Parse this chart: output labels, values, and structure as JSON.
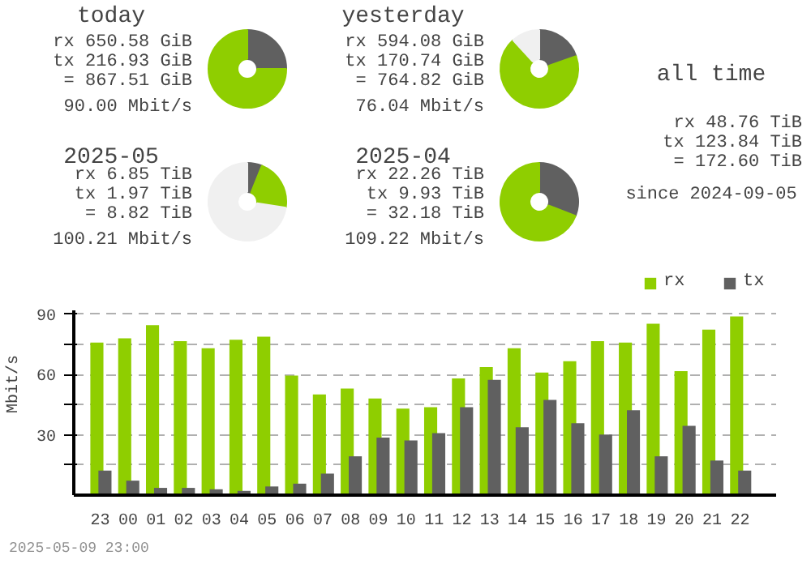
{
  "chart_data": [
    {
      "type": "donut",
      "title": "today",
      "categories": [
        null,
        null
      ],
      "values": [
        25.0,
        75.0
      ],
      "colors": [
        "#606060",
        "#8fce00"
      ],
      "annotations": [
        "rx 650.58 GiB",
        "tx 216.93 GiB",
        "= 867.51 GiB",
        "90.00 Mbit/s"
      ]
    },
    {
      "type": "donut",
      "title": "yesterday",
      "categories": [
        null,
        null,
        null
      ],
      "values": [
        19.7,
        68.5,
        11.8
      ],
      "colors": [
        "#606060",
        "#8fce00",
        "#f0f0f0"
      ],
      "annotations": [
        "rx 594.08 GiB",
        "tx 170.74 GiB",
        "= 764.82 GiB",
        "76.04 Mbit/s"
      ]
    },
    {
      "type": "other",
      "title": "all time",
      "annotations": [
        "rx 48.76 TiB",
        "tx 123.84 TiB",
        "= 172.60 TiB",
        "since 2024-09-05"
      ]
    },
    {
      "type": "donut",
      "title": "2025-05",
      "categories": [
        null,
        null,
        null
      ],
      "values": [
        6.1,
        21.3,
        72.6
      ],
      "colors": [
        "#606060",
        "#8fce00",
        "#f0f0f0"
      ],
      "annotations": [
        "rx 6.85 TiB",
        "tx 1.97 TiB",
        "= 8.82 TiB",
        "100.21 Mbit/s"
      ]
    },
    {
      "type": "donut",
      "title": "2025-04",
      "categories": [
        null,
        null
      ],
      "values": [
        30.9,
        69.1
      ],
      "colors": [
        "#606060",
        "#8fce00"
      ],
      "annotations": [
        "rx 22.26 TiB",
        "tx 9.93 TiB",
        "= 32.18 TiB",
        "109.22 Mbit/s"
      ]
    },
    {
      "type": "bar",
      "ylabel": "Mbit/s",
      "categories": [
        "23",
        "00",
        "01",
        "02",
        "03",
        "04",
        "05",
        "06",
        "07",
        "08",
        "09",
        "10",
        "11",
        "12",
        "13",
        "14",
        "15",
        "16",
        "17",
        "18",
        "19",
        "20",
        "21",
        "22"
      ],
      "series": [
        {
          "name": "rx",
          "color": "#8fce00",
          "values": [
            75.9,
            78.0,
            84.5,
            76.6,
            73.0,
            77.3,
            78.8,
            59.4,
            50.1,
            53.0,
            48.0,
            43.0,
            43.7,
            58.0,
            63.7,
            73.0,
            60.9,
            66.6,
            76.6,
            75.9,
            85.2,
            61.6,
            82.3,
            88.8
          ]
        },
        {
          "name": "tx",
          "color": "#606060",
          "values": [
            12.2,
            7.2,
            3.6,
            3.6,
            2.9,
            2.1,
            4.3,
            5.7,
            10.7,
            19.3,
            28.6,
            27.2,
            30.8,
            43.7,
            57.3,
            33.7,
            47.3,
            35.8,
            30.1,
            42.2,
            19.3,
            34.4,
            17.2,
            12.2
          ]
        }
      ],
      "ylim": [
        0,
        92
      ],
      "yticks": [
        {
          "value": 15,
          "label": null
        },
        30,
        {
          "value": 45,
          "label": null
        },
        60,
        {
          "value": 75,
          "label": null
        },
        90
      ],
      "grid": "y",
      "legend": "top right",
      "annotations": [
        "2025-05-09 23:00"
      ]
    }
  ]
}
